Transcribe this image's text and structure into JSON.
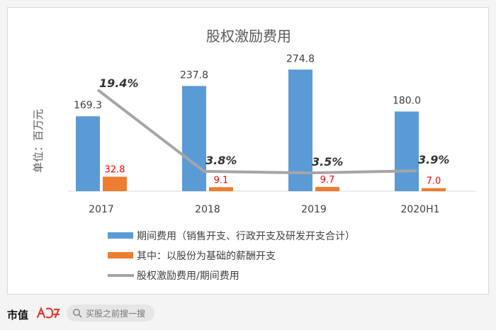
{
  "chart_data": {
    "type": "bar",
    "title": "股权激励费用",
    "ylabel": "单位：百万元",
    "categories": [
      "2017",
      "2018",
      "2019",
      "2020H1"
    ],
    "series": [
      {
        "name": "期间费用（销售开支、行政开支及研发开支合计）",
        "type": "bar",
        "color": "#5b9bd5",
        "values": [
          169.3,
          237.8,
          274.8,
          180.0
        ],
        "labels": [
          "169.3",
          "237.8",
          "274.8",
          "180.0"
        ]
      },
      {
        "name": "其中：以股份为基础的薪酬开支",
        "type": "bar",
        "color": "#ed7d31",
        "values": [
          32.8,
          9.1,
          9.7,
          7.0
        ],
        "labels": [
          "32.8",
          "9.1",
          "9.7",
          "7.0"
        ]
      },
      {
        "name": "股权激励费用/期间费用",
        "type": "line",
        "color": "#a5a5a5",
        "values": [
          19.4,
          3.8,
          3.5,
          3.9
        ],
        "labels": [
          "19.4%",
          "3.8%",
          "3.5%",
          "3.9%"
        ]
      }
    ],
    "ylim": [
      0,
      280
    ],
    "secondary_ylim": [
      0,
      24
    ],
    "legend_position": "bottom",
    "grid": false,
    "colors": {
      "bar_label": "#404040",
      "orange_label": "#ff0000",
      "pct_label": "#333333"
    }
  },
  "footer": {
    "brand": "市值",
    "search_placeholder": "买股之前搜一搜",
    "logo_color": "#e03c31"
  }
}
